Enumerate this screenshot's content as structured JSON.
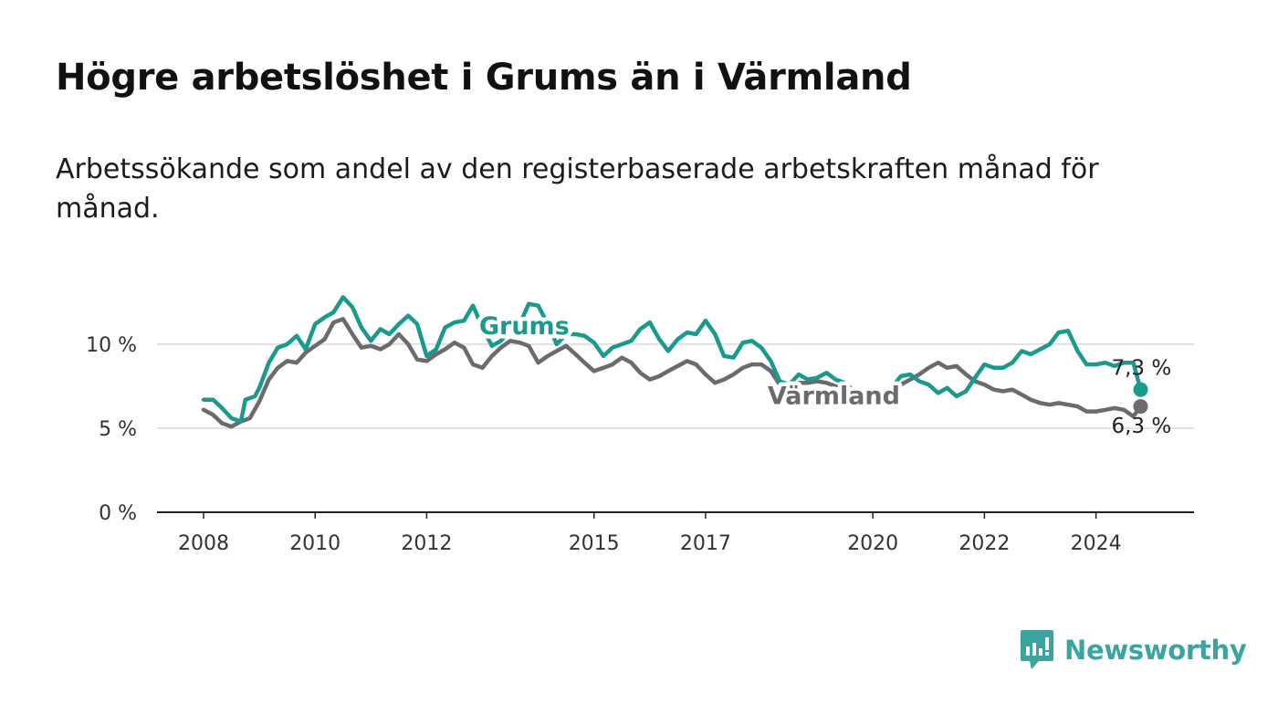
{
  "title": "Högre arbetslöshet i Grums än i Värmland",
  "subtitle": "Arbetssökande som andel av den registerbaserade arbetskraften månad för månad.",
  "brand": {
    "name": "Newsworthy",
    "icon": "newsworthy-logo-icon",
    "color": "#3aa5a0"
  },
  "chart_data": {
    "type": "line",
    "title": "Högre arbetslöshet i Grums än i Värmland",
    "subtitle": "Arbetssökande som andel av den registerbaserade arbetskraften månad för månad.",
    "xlabel": "",
    "ylabel": "",
    "x_range": [
      2007.45,
      2024.8
    ],
    "ylim": [
      0,
      10
    ],
    "y_ticks": [
      0,
      5,
      10
    ],
    "y_tick_labels": [
      "0 %",
      "5 %",
      "10 %"
    ],
    "x_ticks": [
      2008,
      2010,
      2012,
      2015,
      2017,
      2020,
      2022,
      2024
    ],
    "x_tick_labels": [
      "2008",
      "2010",
      "2012",
      "2015",
      "2017",
      "2020",
      "2022",
      "2024"
    ],
    "grid": true,
    "series": [
      {
        "name": "Grums",
        "color": "#1a9a8c",
        "end_label": "7,3 %",
        "points": [
          [
            2008.0,
            6.7
          ],
          [
            2008.17,
            6.7
          ],
          [
            2008.33,
            6.2
          ],
          [
            2008.5,
            5.6
          ],
          [
            2008.67,
            5.4
          ],
          [
            2008.75,
            6.7
          ],
          [
            2008.92,
            6.9
          ],
          [
            2009.0,
            7.4
          ],
          [
            2009.17,
            8.9
          ],
          [
            2009.33,
            9.8
          ],
          [
            2009.5,
            10.0
          ],
          [
            2009.67,
            10.5
          ],
          [
            2009.83,
            9.7
          ],
          [
            2010.0,
            11.2
          ],
          [
            2010.17,
            11.6
          ],
          [
            2010.33,
            11.9
          ],
          [
            2010.5,
            12.8
          ],
          [
            2010.67,
            12.2
          ],
          [
            2010.83,
            11.0
          ],
          [
            2011.0,
            10.2
          ],
          [
            2011.17,
            10.9
          ],
          [
            2011.33,
            10.6
          ],
          [
            2011.5,
            11.2
          ],
          [
            2011.67,
            11.7
          ],
          [
            2011.83,
            11.2
          ],
          [
            2012.0,
            9.3
          ],
          [
            2012.17,
            9.7
          ],
          [
            2012.33,
            11.0
          ],
          [
            2012.5,
            11.3
          ],
          [
            2012.67,
            11.4
          ],
          [
            2012.83,
            12.3
          ],
          [
            2013.0,
            11.0
          ],
          [
            2013.17,
            9.9
          ],
          [
            2013.33,
            10.2
          ],
          [
            2013.5,
            10.9
          ],
          [
            2013.67,
            11.2
          ],
          [
            2013.83,
            12.4
          ],
          [
            2014.0,
            12.3
          ],
          [
            2014.17,
            11.2
          ],
          [
            2014.33,
            10.0
          ],
          [
            2014.5,
            10.6
          ],
          [
            2014.67,
            10.6
          ],
          [
            2014.83,
            10.5
          ],
          [
            2015.0,
            10.1
          ],
          [
            2015.17,
            9.3
          ],
          [
            2015.33,
            9.8
          ],
          [
            2015.5,
            10.0
          ],
          [
            2015.67,
            10.2
          ],
          [
            2015.83,
            10.9
          ],
          [
            2016.0,
            11.3
          ],
          [
            2016.17,
            10.3
          ],
          [
            2016.33,
            9.6
          ],
          [
            2016.5,
            10.3
          ],
          [
            2016.67,
            10.7
          ],
          [
            2016.83,
            10.6
          ],
          [
            2017.0,
            11.4
          ],
          [
            2017.17,
            10.6
          ],
          [
            2017.33,
            9.3
          ],
          [
            2017.5,
            9.2
          ],
          [
            2017.67,
            10.1
          ],
          [
            2017.83,
            10.2
          ],
          [
            2018.0,
            9.8
          ],
          [
            2018.17,
            9.0
          ],
          [
            2018.33,
            7.8
          ],
          [
            2018.5,
            7.6
          ],
          [
            2018.67,
            8.2
          ],
          [
            2018.83,
            7.9
          ],
          [
            2019.0,
            8.0
          ],
          [
            2019.17,
            8.3
          ],
          [
            2019.33,
            7.9
          ],
          [
            2019.5,
            7.7
          ],
          [
            2019.67,
            7.2
          ],
          [
            2019.83,
            7.0
          ],
          [
            2020.0,
            7.2
          ],
          [
            2020.17,
            6.8
          ],
          [
            2020.33,
            7.4
          ],
          [
            2020.5,
            8.1
          ],
          [
            2020.67,
            8.2
          ],
          [
            2020.83,
            7.8
          ],
          [
            2021.0,
            7.6
          ],
          [
            2021.17,
            7.1
          ],
          [
            2021.33,
            7.4
          ],
          [
            2021.5,
            6.9
          ],
          [
            2021.67,
            7.2
          ],
          [
            2021.83,
            8.0
          ],
          [
            2022.0,
            8.8
          ],
          [
            2022.17,
            8.6
          ],
          [
            2022.33,
            8.6
          ],
          [
            2022.5,
            8.9
          ],
          [
            2022.67,
            9.6
          ],
          [
            2022.83,
            9.4
          ],
          [
            2023.0,
            9.7
          ],
          [
            2023.17,
            10.0
          ],
          [
            2023.33,
            10.7
          ],
          [
            2023.5,
            10.8
          ],
          [
            2023.67,
            9.6
          ],
          [
            2023.83,
            8.8
          ],
          [
            2024.0,
            8.8
          ],
          [
            2024.17,
            8.9
          ],
          [
            2024.33,
            8.7
          ],
          [
            2024.5,
            8.9
          ],
          [
            2024.67,
            8.9
          ],
          [
            2024.8,
            7.3
          ]
        ]
      },
      {
        "name": "Värmland",
        "color": "#6b6b6e",
        "end_label": "6,3 %",
        "points": [
          [
            2008.0,
            6.1
          ],
          [
            2008.17,
            5.8
          ],
          [
            2008.33,
            5.3
          ],
          [
            2008.5,
            5.1
          ],
          [
            2008.67,
            5.4
          ],
          [
            2008.83,
            5.6
          ],
          [
            2009.0,
            6.6
          ],
          [
            2009.17,
            7.9
          ],
          [
            2009.33,
            8.6
          ],
          [
            2009.5,
            9.0
          ],
          [
            2009.67,
            8.9
          ],
          [
            2009.83,
            9.5
          ],
          [
            2010.0,
            9.9
          ],
          [
            2010.17,
            10.3
          ],
          [
            2010.33,
            11.3
          ],
          [
            2010.5,
            11.5
          ],
          [
            2010.67,
            10.6
          ],
          [
            2010.83,
            9.8
          ],
          [
            2011.0,
            9.9
          ],
          [
            2011.17,
            9.7
          ],
          [
            2011.33,
            10.0
          ],
          [
            2011.5,
            10.6
          ],
          [
            2011.67,
            10.0
          ],
          [
            2011.83,
            9.1
          ],
          [
            2012.0,
            9.0
          ],
          [
            2012.17,
            9.4
          ],
          [
            2012.33,
            9.7
          ],
          [
            2012.5,
            10.1
          ],
          [
            2012.67,
            9.8
          ],
          [
            2012.83,
            8.8
          ],
          [
            2013.0,
            8.6
          ],
          [
            2013.17,
            9.3
          ],
          [
            2013.33,
            9.8
          ],
          [
            2013.5,
            10.2
          ],
          [
            2013.67,
            10.1
          ],
          [
            2013.83,
            9.9
          ],
          [
            2014.0,
            8.9
          ],
          [
            2014.17,
            9.3
          ],
          [
            2014.33,
            9.6
          ],
          [
            2014.5,
            9.9
          ],
          [
            2014.67,
            9.4
          ],
          [
            2014.83,
            8.9
          ],
          [
            2015.0,
            8.4
          ],
          [
            2015.17,
            8.6
          ],
          [
            2015.33,
            8.8
          ],
          [
            2015.5,
            9.2
          ],
          [
            2015.67,
            8.9
          ],
          [
            2015.83,
            8.3
          ],
          [
            2016.0,
            7.9
          ],
          [
            2016.17,
            8.1
          ],
          [
            2016.33,
            8.4
          ],
          [
            2016.5,
            8.7
          ],
          [
            2016.67,
            9.0
          ],
          [
            2016.83,
            8.8
          ],
          [
            2017.0,
            8.2
          ],
          [
            2017.17,
            7.7
          ],
          [
            2017.33,
            7.9
          ],
          [
            2017.5,
            8.2
          ],
          [
            2017.67,
            8.6
          ],
          [
            2017.83,
            8.8
          ],
          [
            2018.0,
            8.8
          ],
          [
            2018.17,
            8.4
          ],
          [
            2018.33,
            7.6
          ],
          [
            2018.5,
            7.5
          ],
          [
            2018.67,
            7.7
          ],
          [
            2018.83,
            7.7
          ],
          [
            2019.0,
            7.8
          ],
          [
            2019.17,
            7.7
          ],
          [
            2019.33,
            7.5
          ],
          [
            2019.5,
            7.3
          ],
          [
            2019.67,
            7.2
          ],
          [
            2019.83,
            7.0
          ],
          [
            2020.0,
            7.1
          ],
          [
            2020.17,
            7.0
          ],
          [
            2020.33,
            7.3
          ],
          [
            2020.5,
            7.6
          ],
          [
            2020.67,
            7.9
          ],
          [
            2020.83,
            8.2
          ],
          [
            2021.0,
            8.6
          ],
          [
            2021.17,
            8.9
          ],
          [
            2021.33,
            8.6
          ],
          [
            2021.5,
            8.7
          ],
          [
            2021.67,
            8.2
          ],
          [
            2021.83,
            7.8
          ],
          [
            2022.0,
            7.6
          ],
          [
            2022.17,
            7.3
          ],
          [
            2022.33,
            7.2
          ],
          [
            2022.5,
            7.3
          ],
          [
            2022.67,
            7.0
          ],
          [
            2022.83,
            6.7
          ],
          [
            2023.0,
            6.5
          ],
          [
            2023.17,
            6.4
          ],
          [
            2023.33,
            6.5
          ],
          [
            2023.5,
            6.4
          ],
          [
            2023.67,
            6.3
          ],
          [
            2023.83,
            6.0
          ],
          [
            2024.0,
            6.0
          ],
          [
            2024.17,
            6.1
          ],
          [
            2024.33,
            6.2
          ],
          [
            2024.5,
            6.1
          ],
          [
            2024.67,
            5.7
          ],
          [
            2024.8,
            6.3
          ]
        ]
      }
    ]
  }
}
